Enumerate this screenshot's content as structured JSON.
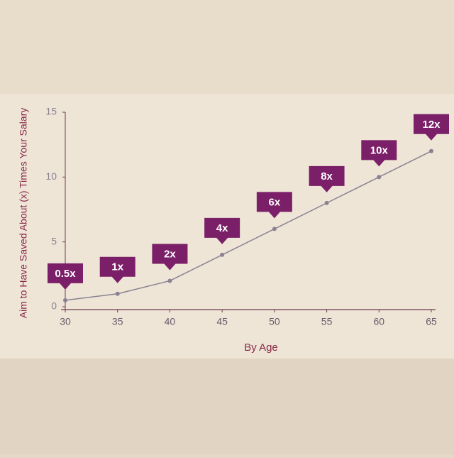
{
  "chart_data": {
    "type": "line",
    "ylabel": "Aim to Have Saved About (x) Times Your Salary",
    "xlabel": "By Age",
    "x": [
      30,
      35,
      40,
      45,
      50,
      55,
      60,
      65
    ],
    "values": [
      0.5,
      1,
      2,
      4,
      6,
      8,
      10,
      12
    ],
    "value_labels": [
      "0.5x",
      "1x",
      "2x",
      "4x",
      "6x",
      "8x",
      "10x",
      "12x"
    ],
    "color": "#8a8292",
    "label_color": "#7a1f68",
    "xlim": [
      30,
      65
    ],
    "xticks": [
      30,
      35,
      40,
      45,
      50,
      55,
      60,
      65
    ],
    "ylim": [
      0,
      15
    ],
    "yticks": [
      0,
      5,
      10,
      15
    ]
  }
}
